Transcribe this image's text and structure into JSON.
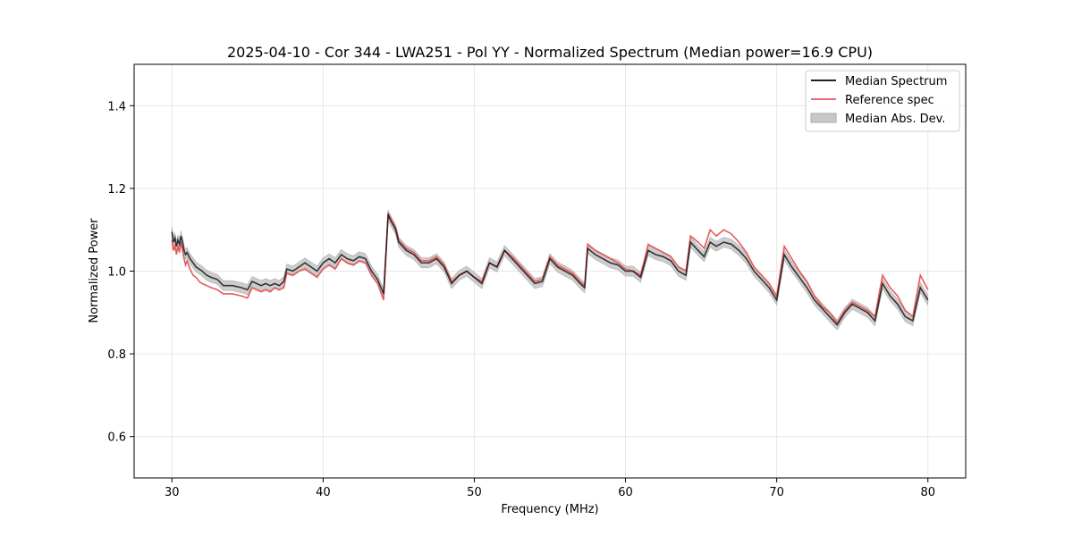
{
  "chart_data": {
    "type": "line",
    "title": "2025-04-10 - Cor 344 - LWA251 - Pol YY - Normalized Spectrum (Median power=16.9 CPU)",
    "xlabel": "Frequency (MHz)",
    "ylabel": "Normalized Power",
    "xlim": [
      27.5,
      82.5
    ],
    "ylim": [
      0.5,
      1.5
    ],
    "xticks": [
      30,
      40,
      50,
      60,
      70,
      80
    ],
    "yticks": [
      0.6,
      0.8,
      1.0,
      1.2,
      1.4
    ],
    "xtick_labels": [
      "30",
      "40",
      "50",
      "60",
      "70",
      "80"
    ],
    "ytick_labels": [
      "0.6",
      "0.8",
      "1.0",
      "1.2",
      "1.4"
    ],
    "grid": true,
    "legend_position": "top-right",
    "legend": [
      "Median Spectrum",
      "Reference spec",
      "Median Abs. Dev."
    ],
    "colors": {
      "median": "#000000",
      "reference": "#e8595a",
      "mad_fill": "#c8c8c8",
      "mad_edge": "#a8a8a8",
      "grid": "#e6e6e6",
      "axes": "#000000"
    },
    "series": [
      {
        "name": "Median Spectrum",
        "x": [
          30.0,
          30.1,
          30.2,
          30.3,
          30.4,
          30.5,
          30.6,
          30.7,
          30.8,
          30.9,
          31.0,
          31.2,
          31.4,
          31.6,
          31.8,
          32.0,
          32.3,
          32.6,
          33.0,
          33.4,
          34.0,
          34.6,
          35.0,
          35.3,
          35.6,
          35.9,
          36.2,
          36.5,
          36.8,
          37.1,
          37.4,
          37.6,
          38.0,
          38.4,
          38.8,
          39.2,
          39.6,
          40.0,
          40.4,
          40.8,
          41.2,
          41.6,
          42.0,
          42.4,
          42.8,
          43.2,
          43.6,
          44.0,
          44.3,
          44.5,
          44.8,
          45.0,
          45.5,
          46.0,
          46.5,
          47.0,
          47.5,
          48.0,
          48.5,
          49.0,
          49.5,
          50.0,
          50.5,
          51.0,
          51.5,
          52.0,
          52.5,
          53.0,
          53.5,
          54.0,
          54.5,
          55.0,
          55.5,
          56.0,
          56.5,
          57.0,
          57.3,
          57.5,
          58.0,
          58.5,
          59.0,
          59.5,
          60.0,
          60.5,
          61.0,
          61.5,
          62.0,
          62.5,
          63.0,
          63.5,
          64.0,
          64.3,
          64.8,
          65.2,
          65.6,
          66.0,
          66.5,
          67.0,
          67.5,
          68.0,
          68.5,
          69.0,
          69.5,
          70.0,
          70.5,
          71.0,
          71.5,
          72.0,
          72.5,
          73.0,
          73.5,
          74.0,
          74.5,
          75.0,
          75.5,
          76.0,
          76.5,
          77.0,
          77.5,
          78.0,
          78.5,
          79.0,
          79.5,
          80.0
        ],
        "values": [
          1.095,
          1.07,
          1.08,
          1.06,
          1.075,
          1.065,
          1.085,
          1.07,
          1.05,
          1.04,
          1.045,
          1.03,
          1.02,
          1.01,
          1.005,
          1.0,
          0.99,
          0.985,
          0.98,
          0.965,
          0.965,
          0.96,
          0.955,
          0.975,
          0.97,
          0.965,
          0.97,
          0.965,
          0.97,
          0.965,
          0.975,
          1.005,
          1.0,
          1.01,
          1.02,
          1.01,
          1.0,
          1.02,
          1.03,
          1.02,
          1.04,
          1.03,
          1.025,
          1.035,
          1.03,
          1.0,
          0.98,
          0.945,
          1.135,
          1.12,
          1.1,
          1.07,
          1.05,
          1.04,
          1.02,
          1.02,
          1.03,
          1.01,
          0.97,
          0.99,
          1.0,
          0.985,
          0.97,
          1.02,
          1.01,
          1.05,
          1.03,
          1.01,
          0.99,
          0.97,
          0.975,
          1.03,
          1.01,
          1.0,
          0.99,
          0.97,
          0.96,
          1.055,
          1.04,
          1.03,
          1.02,
          1.015,
          1.0,
          1.0,
          0.985,
          1.05,
          1.04,
          1.035,
          1.025,
          1.0,
          0.99,
          1.07,
          1.05,
          1.035,
          1.07,
          1.06,
          1.07,
          1.065,
          1.05,
          1.03,
          1.0,
          0.98,
          0.96,
          0.93,
          1.04,
          1.01,
          0.985,
          0.96,
          0.93,
          0.91,
          0.89,
          0.87,
          0.9,
          0.92,
          0.91,
          0.9,
          0.88,
          0.97,
          0.94,
          0.92,
          0.89,
          0.88,
          0.96,
          0.93
        ]
      },
      {
        "name": "Reference spec",
        "x": [
          30.0,
          30.1,
          30.2,
          30.3,
          30.4,
          30.5,
          30.6,
          30.7,
          30.8,
          30.9,
          31.0,
          31.2,
          31.4,
          31.6,
          31.8,
          32.0,
          32.3,
          32.6,
          33.0,
          33.4,
          34.0,
          34.6,
          35.0,
          35.3,
          35.6,
          35.9,
          36.2,
          36.5,
          36.8,
          37.1,
          37.4,
          37.6,
          38.0,
          38.4,
          38.8,
          39.2,
          39.6,
          40.0,
          40.4,
          40.8,
          41.2,
          41.6,
          42.0,
          42.4,
          42.8,
          43.2,
          43.6,
          44.0,
          44.3,
          44.5,
          44.8,
          45.0,
          45.5,
          46.0,
          46.5,
          47.0,
          47.5,
          48.0,
          48.5,
          49.0,
          49.5,
          50.0,
          50.5,
          51.0,
          51.5,
          52.0,
          52.5,
          53.0,
          53.5,
          54.0,
          54.5,
          55.0,
          55.5,
          56.0,
          56.5,
          57.0,
          57.3,
          57.5,
          58.0,
          58.5,
          59.0,
          59.5,
          60.0,
          60.5,
          61.0,
          61.5,
          62.0,
          62.5,
          63.0,
          63.5,
          64.0,
          64.3,
          64.8,
          65.2,
          65.6,
          66.0,
          66.5,
          67.0,
          67.5,
          68.0,
          68.5,
          69.0,
          69.5,
          70.0,
          70.5,
          71.0,
          71.5,
          72.0,
          72.5,
          73.0,
          73.5,
          74.0,
          74.5,
          75.0,
          75.5,
          76.0,
          76.5,
          77.0,
          77.5,
          78.0,
          78.5,
          79.0,
          79.5,
          80.0
        ],
        "values": [
          1.075,
          1.05,
          1.06,
          1.04,
          1.06,
          1.045,
          1.07,
          1.05,
          1.03,
          1.015,
          1.025,
          1.005,
          0.99,
          0.985,
          0.975,
          0.97,
          0.965,
          0.96,
          0.955,
          0.945,
          0.945,
          0.94,
          0.935,
          0.96,
          0.955,
          0.95,
          0.955,
          0.95,
          0.96,
          0.955,
          0.96,
          0.995,
          0.99,
          1.0,
          1.005,
          0.995,
          0.985,
          1.005,
          1.015,
          1.005,
          1.03,
          1.02,
          1.015,
          1.025,
          1.02,
          0.99,
          0.97,
          0.93,
          1.14,
          1.125,
          1.105,
          1.075,
          1.055,
          1.045,
          1.025,
          1.025,
          1.035,
          1.015,
          0.975,
          0.99,
          1.0,
          0.985,
          0.975,
          1.02,
          1.01,
          1.05,
          1.035,
          1.015,
          0.995,
          0.975,
          0.98,
          1.035,
          1.015,
          1.005,
          0.995,
          0.975,
          0.965,
          1.065,
          1.05,
          1.04,
          1.03,
          1.02,
          1.005,
          1.0,
          0.99,
          1.065,
          1.055,
          1.045,
          1.035,
          1.01,
          1.0,
          1.085,
          1.07,
          1.055,
          1.1,
          1.085,
          1.1,
          1.09,
          1.07,
          1.045,
          1.01,
          0.99,
          0.97,
          0.94,
          1.06,
          1.03,
          1.0,
          0.975,
          0.94,
          0.915,
          0.9,
          0.875,
          0.905,
          0.925,
          0.915,
          0.905,
          0.89,
          0.99,
          0.96,
          0.94,
          0.905,
          0.89,
          0.99,
          0.955
        ]
      },
      {
        "name": "Median Abs. Dev.",
        "mad": 0.012
      }
    ]
  }
}
